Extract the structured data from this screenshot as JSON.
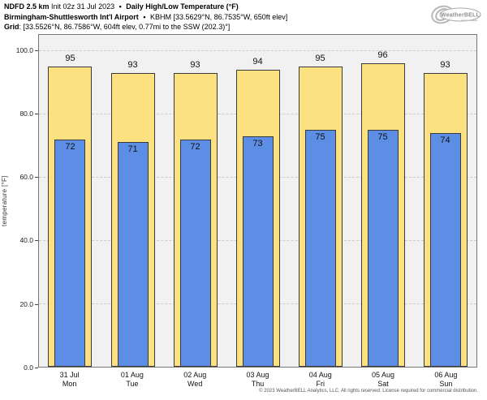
{
  "header": {
    "model": "NDFD 2.5 km",
    "init": "Init 02z 31 Jul 2023",
    "bullet": "•",
    "title": "Daily High/Low Temperature (°F)",
    "station_name": "Birmingham-Shuttlesworth Int'l Airport",
    "station_info": "KBHM [33.5629°N, 86.7535°W, 650ft elev]",
    "grid_label": "Grid",
    "grid_info": ": [33.5526°N, 86.7586°W, 604ft elev, 0.77mi to the SSW (202.3)°]"
  },
  "logo": {
    "text": "WeatherBELL"
  },
  "chart_data": {
    "type": "bar",
    "title": "Daily High/Low Temperature (°F)",
    "categories": [
      {
        "date": "31 Jul",
        "day": "Mon"
      },
      {
        "date": "01 Aug",
        "day": "Tue"
      },
      {
        "date": "02 Aug",
        "day": "Wed"
      },
      {
        "date": "03 Aug",
        "day": "Thu"
      },
      {
        "date": "04 Aug",
        "day": "Fri"
      },
      {
        "date": "05 Aug",
        "day": "Sat"
      },
      {
        "date": "06 Aug",
        "day": "Sun"
      }
    ],
    "series": [
      {
        "name": "High",
        "values": [
          95,
          93,
          93,
          94,
          95,
          96,
          93
        ],
        "color": "#FBE180"
      },
      {
        "name": "Low",
        "values": [
          72,
          71,
          72,
          73,
          75,
          75,
          74
        ],
        "color": "#5C8EE6"
      }
    ],
    "xlabel": "",
    "ylabel": "temperature [°F]",
    "yticks": [
      0,
      20,
      40,
      60,
      80,
      100
    ],
    "ytick_labels": [
      "0.0",
      "20.0",
      "40.0",
      "60.0",
      "80.0",
      "100.0"
    ],
    "ylim": [
      0,
      105
    ],
    "grid": "horizontal-dashed",
    "legend": "none",
    "plot_bg": "#F1F1F1",
    "grid_color": "#CBCBCB",
    "bar_border_color": "#3A3A3A"
  },
  "footer": {
    "copyright": "© 2023 WeatherBELL Analytics, LLC. All rights reserved. License required for commercial distribution."
  }
}
